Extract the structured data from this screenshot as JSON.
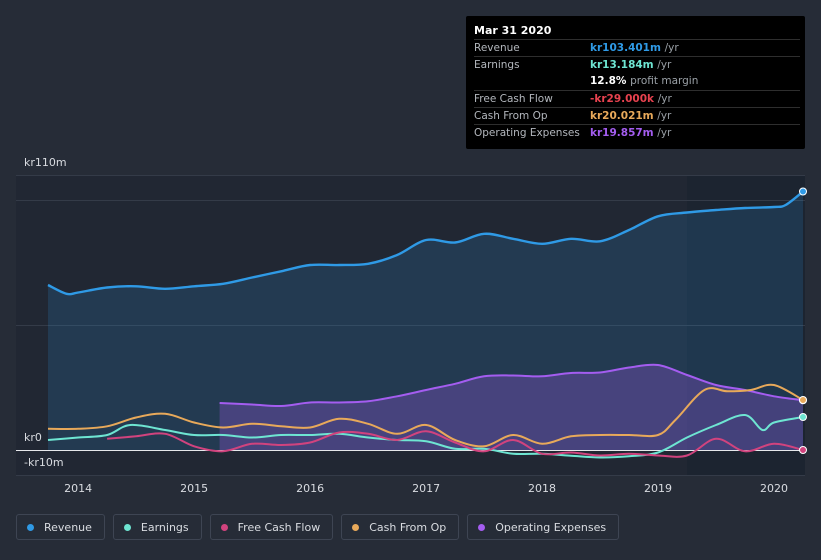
{
  "tooltip": {
    "date": "Mar 31 2020",
    "rows": [
      {
        "label": "Revenue",
        "value": "kr103.401m",
        "unit": "/yr",
        "color": "#2f9ae6"
      },
      {
        "label": "Earnings",
        "value": "kr13.184m",
        "unit": "/yr",
        "color": "#6ee5d2"
      },
      {
        "label": "",
        "value": "12.8%",
        "unit": "profit margin",
        "color": "#ffffff"
      },
      {
        "label": "Free Cash Flow",
        "value": "-kr29.000k",
        "unit": "/yr",
        "color": "#e8424f"
      },
      {
        "label": "Cash From Op",
        "value": "kr20.021m",
        "unit": "/yr",
        "color": "#e8a95a"
      },
      {
        "label": "Operating Expenses",
        "value": "kr19.857m",
        "unit": "/yr",
        "color": "#a45df0"
      }
    ]
  },
  "legend": [
    {
      "label": "Revenue",
      "color": "#2f9ae6"
    },
    {
      "label": "Earnings",
      "color": "#6ee5d2"
    },
    {
      "label": "Free Cash Flow",
      "color": "#d1437e"
    },
    {
      "label": "Cash From Op",
      "color": "#e8a95a"
    },
    {
      "label": "Operating Expenses",
      "color": "#a45df0"
    }
  ],
  "chart_data": {
    "type": "area",
    "title": "",
    "xlabel": "",
    "ylabel": "",
    "ylim": [
      -10,
      110
    ],
    "ytick_labels": [
      {
        "value": 110,
        "label": "kr110m"
      },
      {
        "value": 0,
        "label": "kr0"
      },
      {
        "value": -10,
        "label": "-kr10m"
      }
    ],
    "xlim": [
      2013.74,
      2020.25
    ],
    "xtick_labels": [
      "2014",
      "2015",
      "2016",
      "2017",
      "2018",
      "2019",
      "2020"
    ],
    "xtick_values": [
      2014,
      2015,
      2016,
      2017,
      2018,
      2019,
      2020
    ],
    "highlight_from": 2019.25,
    "series": [
      {
        "name": "Revenue",
        "color": "#2f9ae6",
        "fill": true,
        "x": [
          2013.74,
          2013.9,
          2014.0,
          2014.25,
          2014.5,
          2014.75,
          2015.0,
          2015.25,
          2015.5,
          2015.75,
          2016.0,
          2016.25,
          2016.5,
          2016.75,
          2017.0,
          2017.25,
          2017.5,
          2017.75,
          2018.0,
          2018.25,
          2018.5,
          2018.75,
          2019.0,
          2019.25,
          2019.5,
          2019.75,
          2020.0,
          2020.1,
          2020.25
        ],
        "y": [
          66,
          62.5,
          63,
          65,
          65.5,
          64.5,
          65.5,
          66.5,
          69,
          71.5,
          74,
          74,
          74.5,
          78,
          84,
          83,
          86.5,
          84.5,
          82.5,
          84.5,
          83.5,
          88,
          93.5,
          95,
          96,
          96.8,
          97.2,
          98,
          103.4
        ]
      },
      {
        "name": "Operating Expenses",
        "color": "#a45df0",
        "fill": true,
        "x": [
          2015.22,
          2015.5,
          2015.75,
          2016.0,
          2016.25,
          2016.5,
          2016.75,
          2017.0,
          2017.25,
          2017.5,
          2017.75,
          2018.0,
          2018.25,
          2018.5,
          2018.75,
          2019.0,
          2019.25,
          2019.5,
          2019.75,
          2020.0,
          2020.25
        ],
        "y": [
          18.8,
          18.2,
          17.6,
          19,
          19,
          19.5,
          21.5,
          24,
          26.5,
          29.5,
          29.8,
          29.5,
          30.8,
          31,
          33,
          34,
          30,
          26,
          24,
          21.5,
          19.9
        ]
      },
      {
        "name": "Cash From Op",
        "color": "#e8a95a",
        "fill": false,
        "x": [
          2013.74,
          2014.0,
          2014.25,
          2014.5,
          2014.75,
          2015.0,
          2015.25,
          2015.5,
          2015.75,
          2016.0,
          2016.25,
          2016.5,
          2016.75,
          2017.0,
          2017.25,
          2017.5,
          2017.75,
          2018.0,
          2018.25,
          2018.5,
          2018.75,
          2019.0,
          2019.15,
          2019.4,
          2019.6,
          2019.8,
          2020.0,
          2020.25
        ],
        "y": [
          8.5,
          8.5,
          9.5,
          13,
          14.5,
          11,
          9,
          10.5,
          9.5,
          9,
          12.5,
          10.5,
          6.5,
          10,
          4,
          1.5,
          6,
          2.5,
          5.5,
          6,
          6,
          6,
          12,
          24,
          23.5,
          24,
          26,
          20
        ]
      },
      {
        "name": "Earnings",
        "color": "#6ee5d2",
        "fill": false,
        "x": [
          2013.74,
          2014.0,
          2014.25,
          2014.45,
          2014.75,
          2015.0,
          2015.25,
          2015.5,
          2015.75,
          2016.0,
          2016.25,
          2016.5,
          2016.75,
          2017.0,
          2017.25,
          2017.5,
          2017.75,
          2018.0,
          2018.25,
          2018.5,
          2018.75,
          2019.0,
          2019.25,
          2019.5,
          2019.75,
          2019.9,
          2020.0,
          2020.25
        ],
        "y": [
          4,
          5,
          6,
          10,
          8,
          6,
          6,
          5,
          6,
          6,
          6.5,
          5,
          4,
          3.5,
          0.5,
          0.5,
          -1.5,
          -1.5,
          -2.3,
          -3,
          -2.5,
          -1,
          5,
          10,
          14,
          8,
          11,
          13.2
        ]
      },
      {
        "name": "Free Cash Flow",
        "color": "#d1437e",
        "fill": false,
        "x": [
          2014.25,
          2014.5,
          2014.75,
          2015.0,
          2015.25,
          2015.5,
          2015.75,
          2016.0,
          2016.25,
          2016.5,
          2016.75,
          2017.0,
          2017.25,
          2017.5,
          2017.75,
          2018.0,
          2018.25,
          2018.5,
          2018.75,
          2019.0,
          2019.25,
          2019.5,
          2019.75,
          2020.0,
          2020.25
        ],
        "y": [
          4.5,
          5.5,
          6.5,
          1.5,
          -0.5,
          2.5,
          2,
          3,
          7,
          6.5,
          4,
          7.5,
          3,
          -0.5,
          4,
          -1.5,
          -1,
          -2.2,
          -1.5,
          -2.2,
          -2.2,
          4.5,
          -0.5,
          2.5,
          0
        ]
      }
    ]
  }
}
